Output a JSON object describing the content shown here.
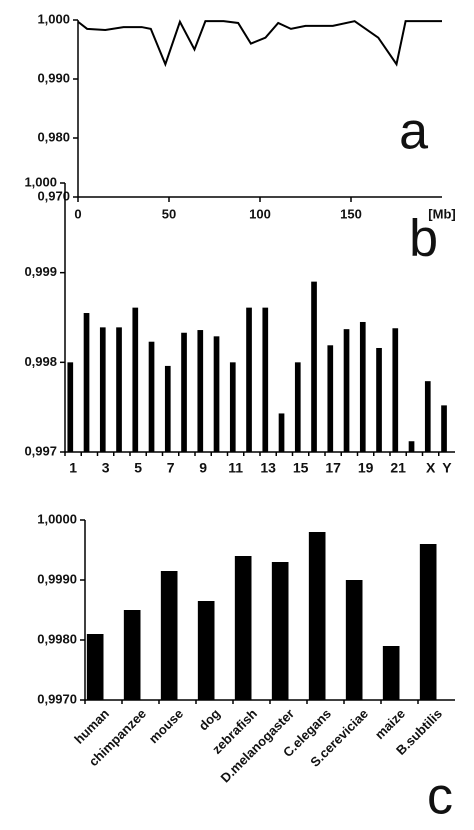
{
  "chart_data": [
    {
      "type": "line",
      "annotation": "a",
      "x_label": "[Mb]",
      "color": "#000000",
      "x": [
        0,
        5,
        15,
        25,
        35,
        40,
        48,
        56,
        64,
        70,
        80,
        88,
        95,
        103,
        110,
        117,
        125,
        140,
        152,
        165,
        175,
        180,
        200
      ],
      "values": [
        0.9997,
        0.9985,
        0.9983,
        0.9988,
        0.9988,
        0.9985,
        0.9925,
        0.9997,
        0.995,
        0.9998,
        0.9998,
        0.9995,
        0.996,
        0.997,
        0.9995,
        0.9985,
        0.999,
        0.999,
        0.9998,
        0.997,
        0.9925,
        0.9998,
        0.9998
      ],
      "xlim": [
        0,
        200
      ],
      "xticks": [
        0,
        50,
        100,
        150
      ],
      "ylim": [
        0.97,
        1.0
      ],
      "yticks": [
        {
          "value": 0.97,
          "label": "0,970"
        },
        {
          "value": 0.98,
          "label": "0,980"
        },
        {
          "value": 0.99,
          "label": "0,990"
        },
        {
          "value": 1.0,
          "label": "1,000"
        }
      ]
    },
    {
      "type": "bar",
      "annotation": "b",
      "color": "#000000",
      "categories": [
        "1",
        null,
        "3",
        null,
        "5",
        null,
        "7",
        null,
        "9",
        null,
        "11",
        null,
        "13",
        null,
        "15",
        null,
        "17",
        null,
        "19",
        null,
        "21",
        null,
        "X",
        "Y"
      ],
      "values": [
        0.998,
        0.99855,
        0.99839,
        0.99839,
        0.99861,
        0.99823,
        0.99796,
        0.99833,
        0.99836,
        0.99829,
        0.998,
        0.99861,
        0.99861,
        0.99743,
        0.998,
        0.9989,
        0.99819,
        0.99837,
        0.99845,
        0.99816,
        0.99838,
        0.99712,
        0.99779,
        0.99752
      ],
      "ylim": [
        0.997,
        1.0
      ],
      "yticks": [
        {
          "value": 0.997,
          "label": "0,997"
        },
        {
          "value": 0.998,
          "label": "0,998"
        },
        {
          "value": 0.999,
          "label": "0,999"
        },
        {
          "value": 1.0,
          "label": "1,000"
        }
      ]
    },
    {
      "type": "bar",
      "annotation": "c",
      "color": "#000000",
      "rotate_labels": true,
      "categories": [
        "human",
        "chimpanzee",
        "mouse",
        "dog",
        "zebrafish",
        "D.melanogaster",
        "C.elegans",
        "S.cereviciae",
        "maize",
        "B.subtilis"
      ],
      "values": [
        0.9981,
        0.9985,
        0.99915,
        0.99865,
        0.9994,
        0.9993,
        0.9998,
        0.999,
        0.9979,
        0.9996
      ],
      "ylim": [
        0.997,
        1.0
      ],
      "yticks": [
        {
          "value": 0.997,
          "label": "0,9970"
        },
        {
          "value": 0.998,
          "label": "0,9980"
        },
        {
          "value": 0.999,
          "label": "0,9990"
        },
        {
          "value": 1.0,
          "label": "1,0000"
        }
      ]
    }
  ]
}
